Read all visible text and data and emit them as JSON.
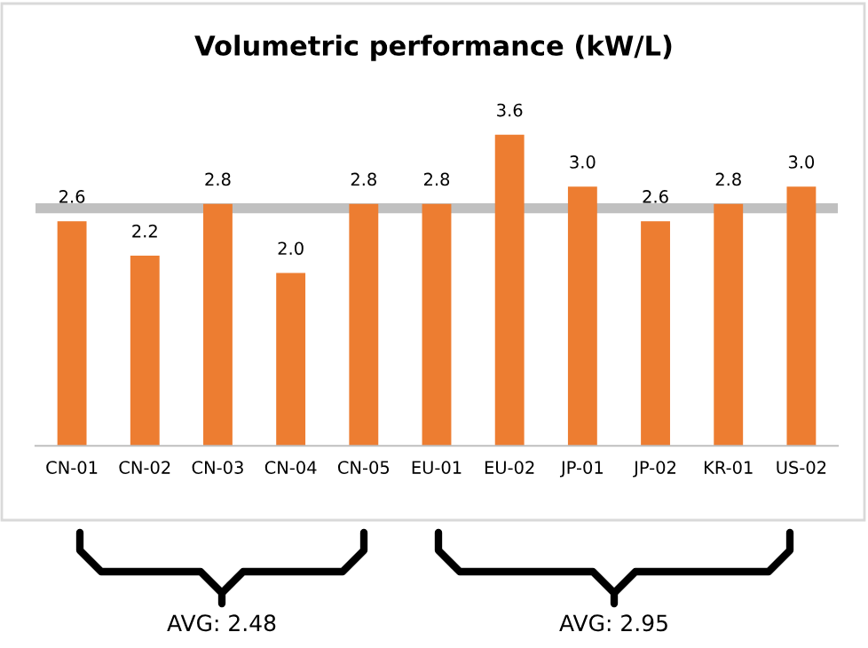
{
  "chart_data": {
    "type": "bar",
    "title": "Volumetric performance (kW/L)",
    "categories": [
      "CN-01",
      "CN-02",
      "CN-03",
      "CN-04",
      "CN-05",
      "EU-01",
      "EU-02",
      "JP-01",
      "JP-02",
      "KR-01",
      "US-02"
    ],
    "values": [
      2.6,
      2.2,
      2.8,
      2.0,
      2.8,
      2.8,
      3.6,
      3.0,
      2.6,
      2.8,
      3.0
    ],
    "color": "#ed7d31",
    "value_labels": [
      "2.6",
      "2.2",
      "2.8",
      "2.0",
      "2.8",
      "2.8",
      "3.6",
      "3.0",
      "2.6",
      "2.8",
      "3.0"
    ],
    "ref_lines": [
      {
        "axis": "y",
        "value": 2.75,
        "color": "#c0c0c0"
      }
    ],
    "annotations": [
      "AVG: 2.48",
      "AVG: 2.95"
    ]
  }
}
